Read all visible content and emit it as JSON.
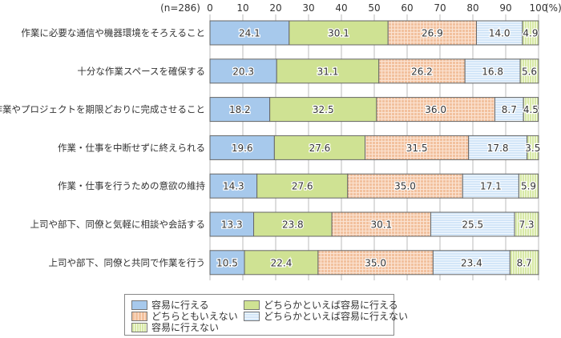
{
  "chart_data": {
    "type": "bar",
    "orientation": "horizontal",
    "stacked": true,
    "n_label": "(n=286)",
    "unit_label": "(%)",
    "xlim": [
      0,
      100
    ],
    "ticks": [
      "0",
      "10",
      "20",
      "30",
      "40",
      "50",
      "60",
      "70",
      "80",
      "90",
      "100"
    ],
    "grid": true,
    "legend_position": "bottom",
    "categories": [
      "作業に必要な通信や機器環境をそろえること",
      "十分な作業スペースを確保する",
      "作業やプロジェクトを期限どおりに完成させること",
      "作業・仕事を中断せずに終えられる",
      "作業・仕事を行うための意欲の維持",
      "上司や部下、同僚と気軽に相談や会話する",
      "上司や部下、同僚と共同で作業を行う"
    ],
    "series": [
      {
        "name": "容易に行える",
        "color": "#a7c9ec",
        "pattern": "solid",
        "values": [
          24.1,
          20.3,
          18.2,
          19.6,
          14.3,
          13.3,
          10.5
        ]
      },
      {
        "name": "どちらかといえば容易に行える",
        "color": "#cfe293",
        "pattern": "solid",
        "values": [
          30.1,
          31.1,
          32.5,
          27.6,
          27.6,
          23.8,
          22.4
        ]
      },
      {
        "name": "どちらともいえない",
        "color": "#f2c19e",
        "pattern": "grid",
        "values": [
          26.9,
          26.2,
          36.0,
          31.5,
          35.0,
          30.1,
          35.0
        ]
      },
      {
        "name": "どちらかといえば容易に行えない",
        "color": "#d3e6f8",
        "pattern": "hstripe",
        "values": [
          14.0,
          16.8,
          8.7,
          17.8,
          17.1,
          25.5,
          23.4
        ]
      },
      {
        "name": "容易に行えない",
        "color": "#e3efbf",
        "pattern": "vstripe",
        "values": [
          4.9,
          5.6,
          4.5,
          3.5,
          5.9,
          7.3,
          8.7
        ]
      }
    ]
  }
}
